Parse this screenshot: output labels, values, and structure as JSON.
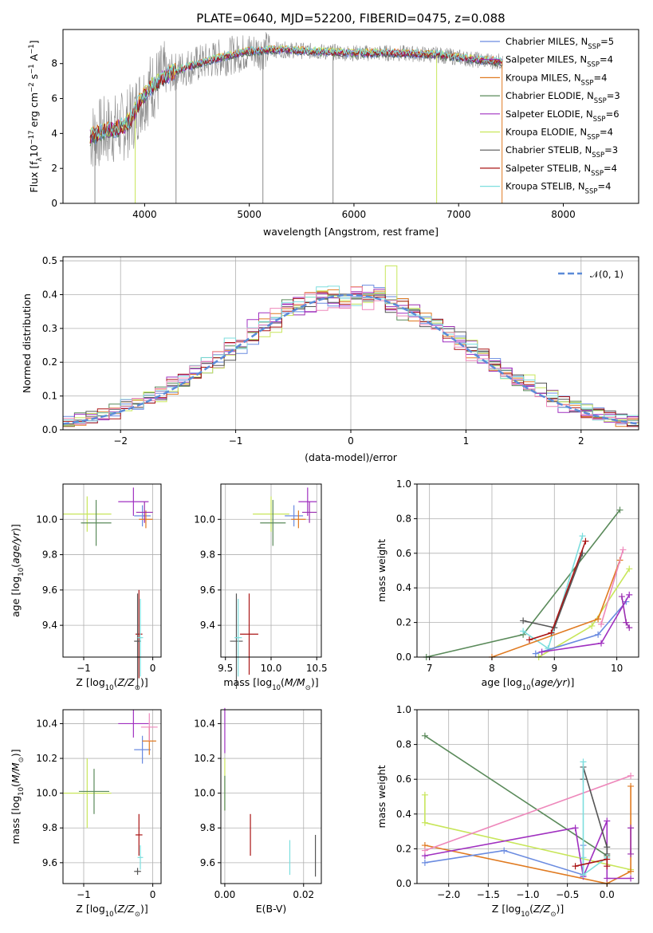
{
  "figure": {
    "title": "PLATE=0640, MJD=52200, FIBERID=0475, z=0.088"
  },
  "colors": {
    "Chabrier MILES": "#6a8be0",
    "Salpeter MILES": "#9b2fb0",
    "Kroupa MILES": "#e07a20",
    "Chabrier ELODIE": "#5a8a5a",
    "Salpeter ELODIE": "#a030c0",
    "Kroupa ELODIE": "#c8e65a",
    "Chabrier STELIB": "#555555",
    "Salpeter STELIB": "#aa1515",
    "Kroupa STELIB": "#7ddede",
    "data": "#8a8a8a",
    "gauss": "#5b8bd8",
    "pink": "#ee88bb"
  },
  "chart_data": [
    {
      "id": "spectrum",
      "type": "line",
      "title": "PLATE=0640, MJD=52200, FIBERID=0475, z=0.088",
      "xlabel": "wavelength [Angstrom, rest frame]",
      "ylabel": "Flux [f_λ 10^-17 erg cm^-2 s^-1 A^-1]",
      "xlim": [
        3200,
        7200
      ],
      "ylim": [
        0,
        10
      ],
      "xticks": [
        "4000",
        "5000",
        "6000",
        "7000",
        "8000"
      ],
      "yticks": [
        "0",
        "2",
        "4",
        "6",
        "8"
      ],
      "legend_position": "right",
      "legend": [
        "Chabrier MILES, N_SSP=5",
        "Salpeter MILES, N_SSP=4",
        "Kroupa MILES, N_SSP=4",
        "Chabrier ELODIE, N_SSP=3",
        "Salpeter ELODIE, N_SSP=6",
        "Kroupa ELODIE, N_SSP=4",
        "Chabrier STELIB, N_SSP=3",
        "Salpeter STELIB, N_SSP=4",
        "Kroupa STELIB, N_SSP=4"
      ],
      "series": [
        {
          "name": "Chabrier MILES, N_SSP=5",
          "x": [
            3500,
            3900,
            4000,
            4500,
            5000,
            5500,
            6000,
            6500,
            7000,
            7400
          ],
          "y": [
            4.0,
            4.8,
            6.5,
            8.0,
            8.7,
            8.7,
            8.6,
            8.5,
            8.5,
            8.3
          ]
        },
        {
          "name": "Kroupa ELODIE, N_SSP=4",
          "x": [
            3500,
            3900,
            4000,
            4500,
            5000,
            5500,
            6000,
            6500,
            7000,
            7400
          ],
          "y": [
            3.9,
            4.7,
            6.4,
            7.9,
            8.6,
            8.8,
            8.7,
            8.6,
            8.6,
            8.4
          ]
        },
        {
          "name": "Kroupa STELIB, N_SSP=4",
          "x": [
            3500,
            3900,
            4000,
            4500,
            5000,
            5500,
            6000,
            6500,
            7000,
            7400
          ],
          "y": [
            3.6,
            4.5,
            6.3,
            8.2,
            8.9,
            8.8,
            8.7,
            8.4,
            8.3,
            8.0
          ]
        }
      ]
    },
    {
      "id": "residuals",
      "type": "histogram",
      "xlabel": "(data-model)/error",
      "ylabel": "Normed distribution",
      "xlim": [
        -2.5,
        2.5
      ],
      "ylim": [
        0,
        0.5
      ],
      "xticks": [
        "−2",
        "−1",
        "0",
        "1",
        "2"
      ],
      "yticks": [
        "0.0",
        "0.1",
        "0.2",
        "0.3",
        "0.4",
        "0.5"
      ],
      "legend": [
        "𝒩(0, 1)"
      ],
      "legend_position": "top-right",
      "bin_width": 0.1
    },
    {
      "id": "age_vs_Z",
      "type": "scatter",
      "xlabel": "Z [log10(Z/Z⊙)]",
      "ylabel": "age [log10(age/yr)]",
      "xlim": [
        -1.3,
        0.12
      ],
      "ylim": [
        9.22,
        10.2
      ],
      "xticks": [
        "−1",
        "0"
      ],
      "xtick_values": [
        -1,
        0
      ],
      "yticks": [
        "9.4",
        "9.6",
        "9.8",
        "10.0"
      ],
      "ytick_values": [
        9.4,
        9.6,
        9.8,
        10.0
      ],
      "points": [
        {
          "name": "Kroupa ELODIE",
          "x": -0.95,
          "y": 10.03,
          "xerr": 0.35,
          "yerr": 0.1
        },
        {
          "name": "Chabrier ELODIE",
          "x": -0.82,
          "y": 9.98,
          "xerr": 0.22,
          "yerr": 0.13
        },
        {
          "name": "Salpeter ELODIE",
          "x": -0.28,
          "y": 10.1,
          "xerr": 0.22,
          "yerr": 0.08
        },
        {
          "name": "Chabrier MILES",
          "x": -0.15,
          "y": 10.02,
          "xerr": 0.12,
          "yerr": 0.06
        },
        {
          "name": "Kroupa MILES",
          "x": -0.1,
          "y": 10.0,
          "xerr": 0.1,
          "yerr": 0.05
        },
        {
          "name": "Salpeter MILES",
          "x": -0.12,
          "y": 10.04,
          "xerr": 0.12,
          "yerr": 0.06
        },
        {
          "name": "Salpeter STELIB",
          "x": -0.2,
          "y": 9.35,
          "xerr": 0.05,
          "yerr": 0.25
        },
        {
          "name": "Chabrier STELIB",
          "x": -0.22,
          "y": 9.31,
          "xerr": 0.05,
          "yerr": 0.27
        },
        {
          "name": "Kroupa STELIB",
          "x": -0.18,
          "y": 9.33,
          "xerr": 0.04,
          "yerr": 0.22
        }
      ]
    },
    {
      "id": "age_vs_mass",
      "type": "scatter",
      "xlabel": "mass [log10(M/M⊙)]",
      "xlim": [
        9.45,
        10.55
      ],
      "ylim": [
        9.22,
        10.2
      ],
      "xticks": [
        "9.5",
        "10.0",
        "10.5"
      ],
      "xtick_values": [
        9.5,
        10.0,
        10.5
      ],
      "yticks": [
        "9.4",
        "9.6",
        "9.8",
        "10.0"
      ],
      "ytick_values": [
        9.4,
        9.6,
        9.8,
        10.0
      ],
      "points": [
        {
          "name": "Kroupa ELODIE",
          "x": 10.0,
          "y": 10.03,
          "xerr": 0.2,
          "yerr": 0.1
        },
        {
          "name": "Chabrier ELODIE",
          "x": 10.02,
          "y": 9.98,
          "xerr": 0.14,
          "yerr": 0.13
        },
        {
          "name": "Salpeter ELODIE",
          "x": 10.4,
          "y": 10.1,
          "xerr": 0.1,
          "yerr": 0.08
        },
        {
          "name": "Chabrier MILES",
          "x": 10.25,
          "y": 10.02,
          "xerr": 0.1,
          "yerr": 0.06
        },
        {
          "name": "Kroupa MILES",
          "x": 10.3,
          "y": 10.0,
          "xerr": 0.08,
          "yerr": 0.05
        },
        {
          "name": "Salpeter MILES",
          "x": 10.42,
          "y": 10.04,
          "xerr": 0.08,
          "yerr": 0.06
        },
        {
          "name": "Salpeter STELIB",
          "x": 9.76,
          "y": 9.35,
          "xerr": 0.1,
          "yerr": 0.23
        },
        {
          "name": "Chabrier STELIB",
          "x": 9.62,
          "y": 9.31,
          "xerr": 0.07,
          "yerr": 0.27
        },
        {
          "name": "Kroupa STELIB",
          "x": 9.64,
          "y": 9.33,
          "xerr": 0.04,
          "yerr": 0.22
        }
      ]
    },
    {
      "id": "weight_vs_age",
      "type": "line",
      "xlabel": "age [log10(age/yr)]",
      "ylabel": "mass weight",
      "xlim": [
        6.8,
        10.35
      ],
      "ylim": [
        0,
        1.0
      ],
      "xticks": [
        "7",
        "8",
        "9",
        "10"
      ],
      "xtick_values": [
        7,
        8,
        9,
        10
      ],
      "yticks": [
        "0.0",
        "0.2",
        "0.4",
        "0.6",
        "0.8",
        "1.0"
      ],
      "ytick_values": [
        0,
        0.2,
        0.4,
        0.6,
        0.8,
        1.0
      ],
      "series": [
        {
          "name": "Chabrier ELODIE",
          "x": [
            6.95,
            8.5,
            10.05
          ],
          "y": [
            0.0,
            0.13,
            0.85
          ]
        },
        {
          "name": "Kroupa ELODIE",
          "x": [
            8.75,
            9.6,
            10.2
          ],
          "y": [
            0.0,
            0.18,
            0.51
          ]
        },
        {
          "name": "Kroupa STELIB",
          "x": [
            8.5,
            8.9,
            9.45
          ],
          "y": [
            0.15,
            0.05,
            0.7
          ]
        },
        {
          "name": "Chabrier STELIB",
          "x": [
            8.5,
            9.0,
            9.45
          ],
          "y": [
            0.21,
            0.17,
            0.6
          ]
        },
        {
          "name": "Salpeter STELIB",
          "x": [
            8.6,
            8.95,
            9.5
          ],
          "y": [
            0.1,
            0.14,
            0.67
          ]
        },
        {
          "name": "Kroupa MILES",
          "x": [
            8.0,
            9.7,
            10.05
          ],
          "y": [
            0.0,
            0.22,
            0.56
          ]
        },
        {
          "name": "Chabrier MILES",
          "x": [
            8.7,
            9.7,
            10.15
          ],
          "y": [
            0.02,
            0.13,
            0.32
          ]
        },
        {
          "name": "Salpeter ELODIE",
          "x": [
            8.8,
            9.75,
            10.2
          ],
          "y": [
            0.03,
            0.08,
            0.36
          ]
        },
        {
          "name": "Salpeter MILES",
          "x": [
            10.08,
            10.15,
            10.2
          ],
          "y": [
            0.35,
            0.2,
            0.17
          ]
        },
        {
          "name": "pink",
          "x": [
            9.75,
            10.1
          ],
          "y": [
            0.19,
            0.62
          ]
        }
      ]
    },
    {
      "id": "mass_vs_Z",
      "type": "scatter",
      "xlabel": "Z [log10(Z/Z⊙)]",
      "ylabel": "mass [log10(M/M⊙)]",
      "xlim": [
        -1.3,
        0.12
      ],
      "ylim": [
        9.48,
        10.48
      ],
      "xticks": [
        "−1",
        "0"
      ],
      "xtick_values": [
        -1,
        0
      ],
      "yticks": [
        "9.6",
        "9.8",
        "10.0",
        "10.2",
        "10.4"
      ],
      "ytick_values": [
        9.6,
        9.8,
        10.0,
        10.2,
        10.4
      ],
      "points": [
        {
          "name": "Kroupa ELODIE",
          "x": -0.95,
          "y": 10.0,
          "xerr": 0.35,
          "yerr": 0.2
        },
        {
          "name": "Chabrier ELODIE",
          "x": -0.85,
          "y": 10.01,
          "xerr": 0.22,
          "yerr": 0.13
        },
        {
          "name": "Salpeter ELODIE",
          "x": -0.28,
          "y": 10.4,
          "xerr": 0.22,
          "yerr": 0.08
        },
        {
          "name": "Chabrier MILES",
          "x": -0.15,
          "y": 10.25,
          "xerr": 0.12,
          "yerr": 0.08
        },
        {
          "name": "Kroupa MILES",
          "x": -0.05,
          "y": 10.3,
          "xerr": 0.1,
          "yerr": 0.08
        },
        {
          "name": "pink",
          "x": -0.05,
          "y": 10.38,
          "xerr": 0.12,
          "yerr": 0.08
        },
        {
          "name": "Salpeter STELIB",
          "x": -0.2,
          "y": 9.76,
          "xerr": 0.05,
          "yerr": 0.12
        },
        {
          "name": "Chabrier STELIB",
          "x": -0.22,
          "y": 9.55,
          "xerr": 0.05,
          "yerr": 0.02
        },
        {
          "name": "Kroupa STELIB",
          "x": -0.18,
          "y": 9.63,
          "xerr": 0.04,
          "yerr": 0.07
        }
      ]
    },
    {
      "id": "mass_vs_ebv",
      "type": "scatter",
      "xlabel": "E(B-V)",
      "xlim": [
        -0.001,
        0.0245
      ],
      "ylim": [
        9.48,
        10.48
      ],
      "xticks": [
        "0.00",
        "0.02"
      ],
      "xtick_values": [
        0.0,
        0.02
      ],
      "yticks": [
        "9.6",
        "9.8",
        "10.0",
        "10.2",
        "10.4"
      ],
      "ytick_values": [
        9.6,
        9.8,
        10.0,
        10.2,
        10.4
      ],
      "points": [
        {
          "name": "Salpeter ELODIE",
          "x": 0.0,
          "y": 10.36,
          "yerr": 0.13
        },
        {
          "name": "Kroupa ELODIE",
          "x": 0.0,
          "y": 10.05,
          "yerr": 0.15
        },
        {
          "name": "Chabrier ELODIE",
          "x": 0.0,
          "y": 10.0,
          "yerr": 0.1
        },
        {
          "name": "Salpeter STELIB",
          "x": 0.0065,
          "y": 9.76,
          "yerr": 0.12
        },
        {
          "name": "Kroupa STELIB",
          "x": 0.0165,
          "y": 9.63,
          "yerr": 0.1
        },
        {
          "name": "Chabrier STELIB",
          "x": 0.023,
          "y": 9.64,
          "yerr": 0.12
        }
      ]
    },
    {
      "id": "weight_vs_Z",
      "type": "line",
      "xlabel": "Z [log10(Z/Z⊙)]",
      "ylabel": "mass weight",
      "xlim": [
        -2.4,
        0.4
      ],
      "ylim": [
        0,
        1.0
      ],
      "xticks": [
        "−2.0",
        "−1.5",
        "−1.0",
        "−0.5",
        "0.0"
      ],
      "xtick_values": [
        -2.0,
        -1.5,
        -1.0,
        -0.5,
        0.0
      ],
      "yticks": [
        "0.0",
        "0.2",
        "0.4",
        "0.6",
        "0.8",
        "1.0"
      ],
      "ytick_values": [
        0,
        0.2,
        0.4,
        0.6,
        0.8,
        1.0
      ],
      "series": [
        {
          "name": "Chabrier ELODIE",
          "x": [
            -2.3,
            0.0
          ],
          "y": [
            0.85,
            0.16
          ]
        },
        {
          "name": "Kroupa ELODIE",
          "x": [
            -2.3,
            -2.3,
            0.3
          ],
          "y": [
            0.51,
            0.35,
            0.08
          ]
        },
        {
          "name": "Kroupa MILES",
          "x": [
            -2.3,
            0.0,
            0.3,
            0.3
          ],
          "y": [
            0.22,
            0.0,
            0.07,
            0.56
          ]
        },
        {
          "name": "Chabrier MILES",
          "x": [
            -2.3,
            -1.3,
            -0.3,
            -0.3
          ],
          "y": [
            0.12,
            0.19,
            0.05,
            0.22
          ]
        },
        {
          "name": "Salpeter ELODIE",
          "x": [
            -2.3,
            -0.4,
            -0.3,
            0.0,
            0.0,
            0.3
          ],
          "y": [
            0.16,
            0.32,
            0.04,
            0.36,
            0.03,
            0.03
          ]
        },
        {
          "name": "pink",
          "x": [
            -2.3,
            0.3
          ],
          "y": [
            0.19,
            0.62
          ]
        },
        {
          "name": "Chabrier STELIB",
          "x": [
            -0.3,
            -0.3,
            0.0,
            0.0
          ],
          "y": [
            0.6,
            0.67,
            0.21,
            0.17
          ]
        },
        {
          "name": "Kroupa STELIB",
          "x": [
            -0.3,
            -0.3,
            -0.3,
            0.0
          ],
          "y": [
            0.7,
            0.15,
            0.05,
            0.15
          ]
        },
        {
          "name": "Salpeter STELIB",
          "x": [
            -0.4,
            0.0,
            0.0
          ],
          "y": [
            0.1,
            0.14,
            0.1
          ]
        },
        {
          "name": "Salpeter MILES",
          "x": [
            0.3,
            0.3
          ],
          "y": [
            0.32,
            0.17
          ]
        }
      ]
    }
  ]
}
